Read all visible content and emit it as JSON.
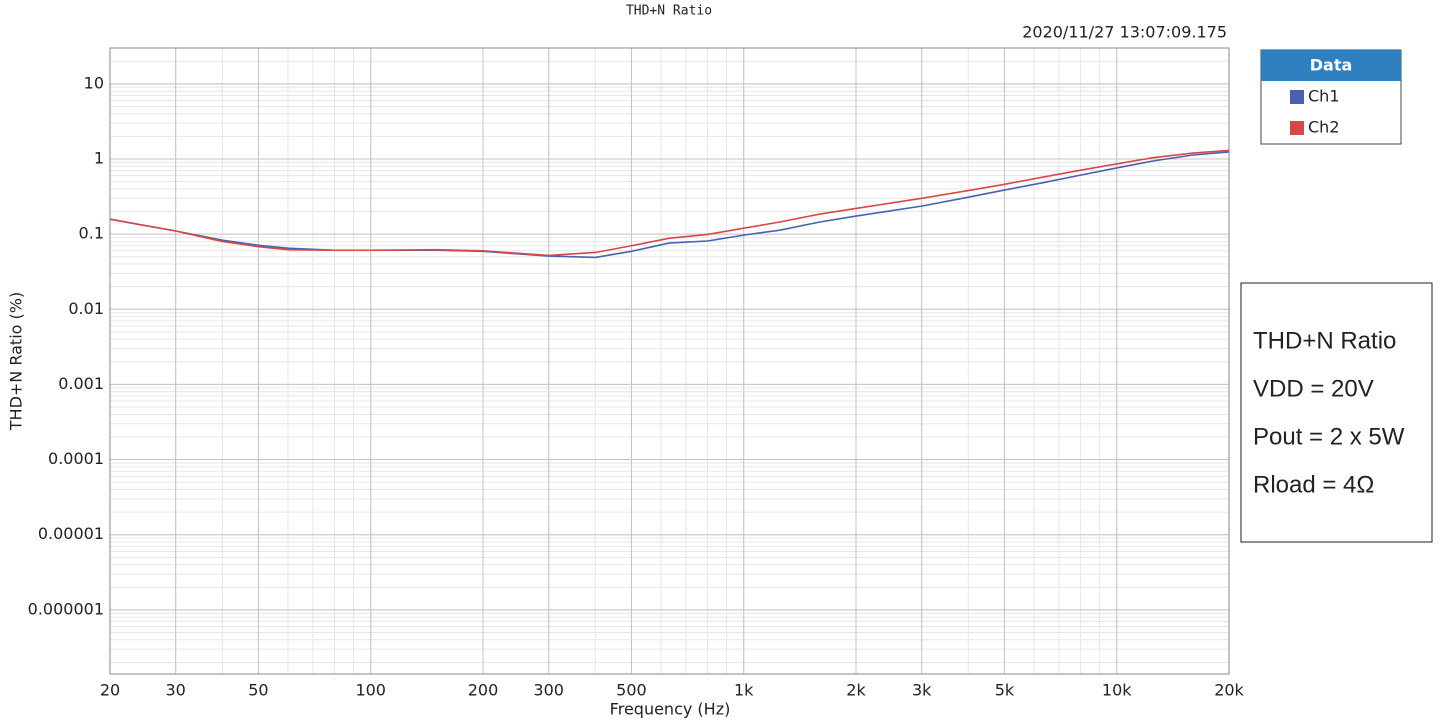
{
  "chart_data": {
    "type": "line",
    "title": "THD+N Ratio",
    "timestamp": "2020/11/27 13:07:09.175",
    "xlabel": "Frequency (Hz)",
    "ylabel": "THD+N Ratio (%)",
    "legend_title": "Data",
    "x": [
      20,
      30,
      40,
      50,
      60,
      80,
      100,
      150,
      200,
      300,
      400,
      500,
      630,
      800,
      1000,
      1250,
      1600,
      2000,
      3000,
      4000,
      5000,
      6300,
      8000,
      10000,
      12500,
      16000,
      20000
    ],
    "series": [
      {
        "name": "Ch1",
        "color": "#4a62ad",
        "values": [
          0.158,
          0.11,
          0.083,
          0.071,
          0.065,
          0.061,
          0.061,
          0.061,
          0.059,
          0.051,
          0.049,
          0.059,
          0.076,
          0.081,
          0.097,
          0.113,
          0.145,
          0.174,
          0.236,
          0.31,
          0.386,
          0.48,
          0.61,
          0.76,
          0.94,
          1.13,
          1.24
        ]
      },
      {
        "name": "Ch2",
        "color": "#d94848",
        "values": [
          0.158,
          0.11,
          0.08,
          0.068,
          0.062,
          0.061,
          0.061,
          0.062,
          0.06,
          0.052,
          0.057,
          0.07,
          0.088,
          0.099,
          0.12,
          0.145,
          0.185,
          0.22,
          0.3,
          0.38,
          0.46,
          0.57,
          0.71,
          0.86,
          1.04,
          1.2,
          1.3
        ]
      }
    ],
    "xscale": "log",
    "yscale": "log",
    "grid": true,
    "xlim": [
      20,
      20000
    ],
    "ylim": [
      1.4e-07,
      30
    ],
    "xticks": [
      20,
      30,
      50,
      100,
      200,
      300,
      500,
      {
        "value": 1000,
        "label": "1k"
      },
      {
        "value": 2000,
        "label": "2k"
      },
      {
        "value": 3000,
        "label": "3k"
      },
      {
        "value": 5000,
        "label": "5k"
      },
      {
        "value": 10000,
        "label": "10k"
      },
      {
        "value": 20000,
        "label": "20k"
      }
    ],
    "yticks": [
      10,
      1,
      0.1,
      0.01,
      0.001,
      0.0001,
      1e-05,
      1e-06
    ]
  },
  "annotation": {
    "lines": [
      "THD+N Ratio",
      "VDD = 20V",
      "Pout = 2 x 5W",
      "Rload = 4Ω"
    ]
  }
}
